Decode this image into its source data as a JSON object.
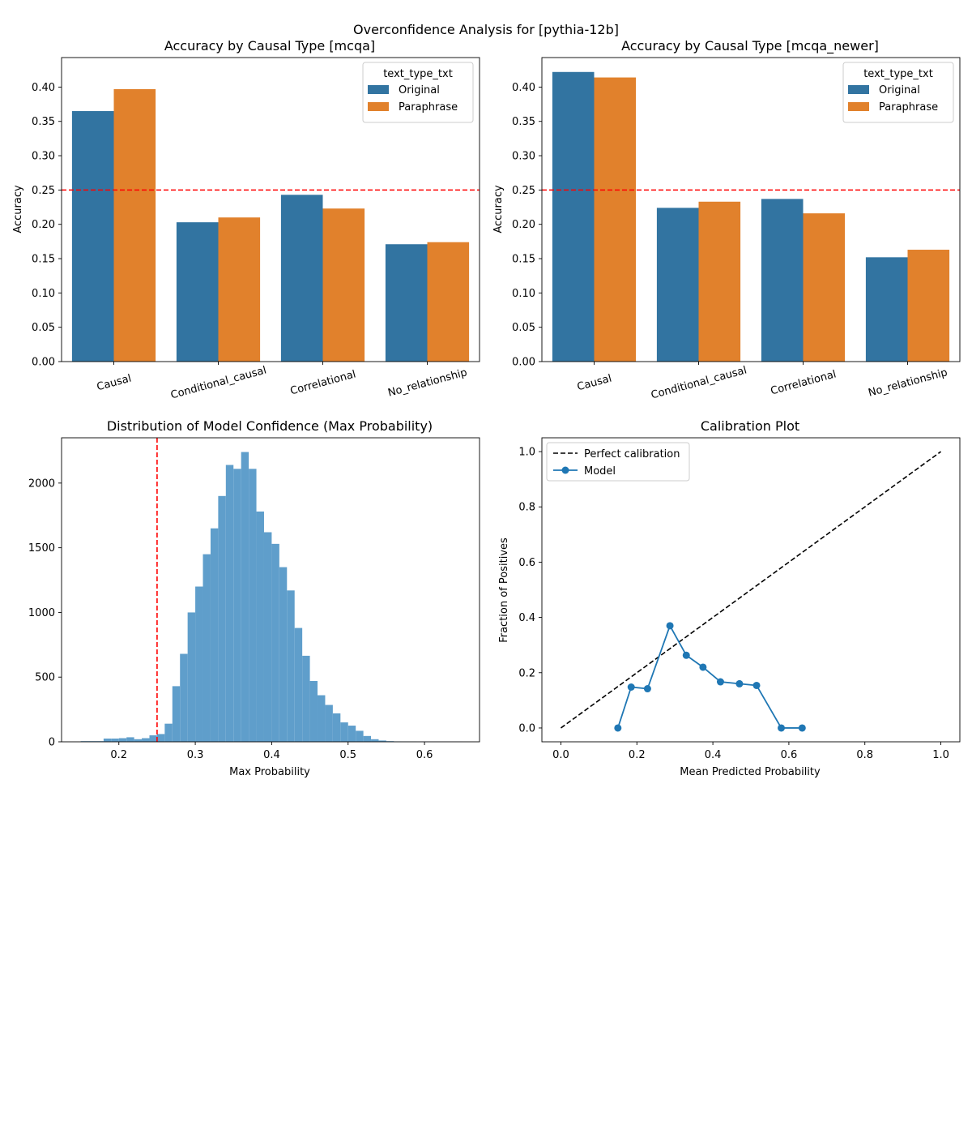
{
  "figure": {
    "suptitle": "Overconfidence Analysis for [pythia-12b]"
  },
  "colors": {
    "original": "#3274a1",
    "paraphrase": "#e1812c",
    "hist": "#5f9ecb",
    "ref_line": "#ff0000",
    "model_line": "#1f77b4",
    "perfect": "#000000"
  },
  "chart_data": [
    {
      "type": "bar",
      "title": "Accuracy by Causal Type [mcqa]",
      "xlabel": "",
      "ylabel": "Accuracy",
      "categories": [
        "Causal",
        "Conditional_causal",
        "Correlational",
        "No_relationship"
      ],
      "series": [
        {
          "name": "Original",
          "values": [
            0.365,
            0.203,
            0.243,
            0.171
          ]
        },
        {
          "name": "Paraphrase",
          "values": [
            0.397,
            0.21,
            0.223,
            0.174
          ]
        }
      ],
      "ylim": [
        0,
        0.443
      ],
      "yticks": [
        0.0,
        0.05,
        0.1,
        0.15,
        0.2,
        0.25,
        0.3,
        0.35,
        0.4
      ],
      "ytick_labels": [
        "0.00",
        "0.05",
        "0.10",
        "0.15",
        "0.20",
        "0.25",
        "0.30",
        "0.35",
        "0.40"
      ],
      "reference_line": 0.25,
      "legend": {
        "title": "text_type_txt",
        "entries": [
          "Original",
          "Paraphrase"
        ],
        "position": "top-right"
      }
    },
    {
      "type": "bar",
      "title": "Accuracy by Causal Type [mcqa_newer]",
      "xlabel": "",
      "ylabel": "Accuracy",
      "categories": [
        "Causal",
        "Conditional_causal",
        "Correlational",
        "No_relationship"
      ],
      "series": [
        {
          "name": "Original",
          "values": [
            0.422,
            0.224,
            0.237,
            0.152
          ]
        },
        {
          "name": "Paraphrase",
          "values": [
            0.414,
            0.233,
            0.216,
            0.163
          ]
        }
      ],
      "ylim": [
        0,
        0.443
      ],
      "yticks": [
        0.0,
        0.05,
        0.1,
        0.15,
        0.2,
        0.25,
        0.3,
        0.35,
        0.4
      ],
      "ytick_labels": [
        "0.00",
        "0.05",
        "0.10",
        "0.15",
        "0.20",
        "0.25",
        "0.30",
        "0.35",
        "0.40"
      ],
      "reference_line": 0.25,
      "legend": {
        "title": "text_type_txt",
        "entries": [
          "Original",
          "Paraphrase"
        ],
        "position": "top-right"
      }
    },
    {
      "type": "histogram",
      "title": "Distribution of Model Confidence (Max Probability)",
      "xlabel": "Max Probability",
      "ylabel": "",
      "bin_start": 0.15,
      "bin_width": 0.01,
      "counts": [
        5,
        5,
        5,
        25,
        25,
        28,
        35,
        20,
        28,
        50,
        60,
        140,
        430,
        680,
        1000,
        1200,
        1450,
        1650,
        1900,
        2140,
        2110,
        2240,
        2110,
        1780,
        1620,
        1530,
        1350,
        1170,
        880,
        665,
        470,
        360,
        285,
        220,
        150,
        125,
        85,
        45,
        20,
        10,
        5,
        3,
        2,
        2,
        1,
        1,
        1,
        1,
        1,
        1
      ],
      "xlim": [
        0.125,
        0.672
      ],
      "ylim": [
        0,
        2350
      ],
      "xticks": [
        0.2,
        0.3,
        0.4,
        0.5,
        0.6
      ],
      "xtick_labels": [
        "0.2",
        "0.3",
        "0.4",
        "0.5",
        "0.6"
      ],
      "yticks": [
        0,
        500,
        1000,
        1500,
        2000
      ],
      "ytick_labels": [
        "0",
        "500",
        "1000",
        "1500",
        "2000"
      ],
      "reference_line": 0.25
    },
    {
      "type": "line",
      "title": "Calibration Plot",
      "xlabel": "Mean Predicted Probability",
      "ylabel": "Fraction of Positives",
      "series": [
        {
          "name": "Perfect calibration",
          "style": "dashed",
          "x": [
            0.0,
            1.0
          ],
          "y": [
            0.0,
            1.0
          ]
        },
        {
          "name": "Model",
          "style": "line-marker",
          "x": [
            0.15,
            0.185,
            0.228,
            0.287,
            0.33,
            0.374,
            0.42,
            0.47,
            0.515,
            0.58,
            0.635
          ],
          "y": [
            0.0,
            0.148,
            0.142,
            0.37,
            0.263,
            0.22,
            0.167,
            0.16,
            0.154,
            0.0,
            0.0
          ]
        }
      ],
      "xlim": [
        -0.05,
        1.05
      ],
      "ylim": [
        -0.05,
        1.05
      ],
      "xticks": [
        0.0,
        0.2,
        0.4,
        0.6,
        0.8,
        1.0
      ],
      "xtick_labels": [
        "0.0",
        "0.2",
        "0.4",
        "0.6",
        "0.8",
        "1.0"
      ],
      "yticks": [
        0.0,
        0.2,
        0.4,
        0.6,
        0.8,
        1.0
      ],
      "ytick_labels": [
        "0.0",
        "0.2",
        "0.4",
        "0.6",
        "0.8",
        "1.0"
      ],
      "legend": {
        "entries": [
          "Perfect calibration",
          "Model"
        ],
        "position": "top-left"
      }
    }
  ]
}
